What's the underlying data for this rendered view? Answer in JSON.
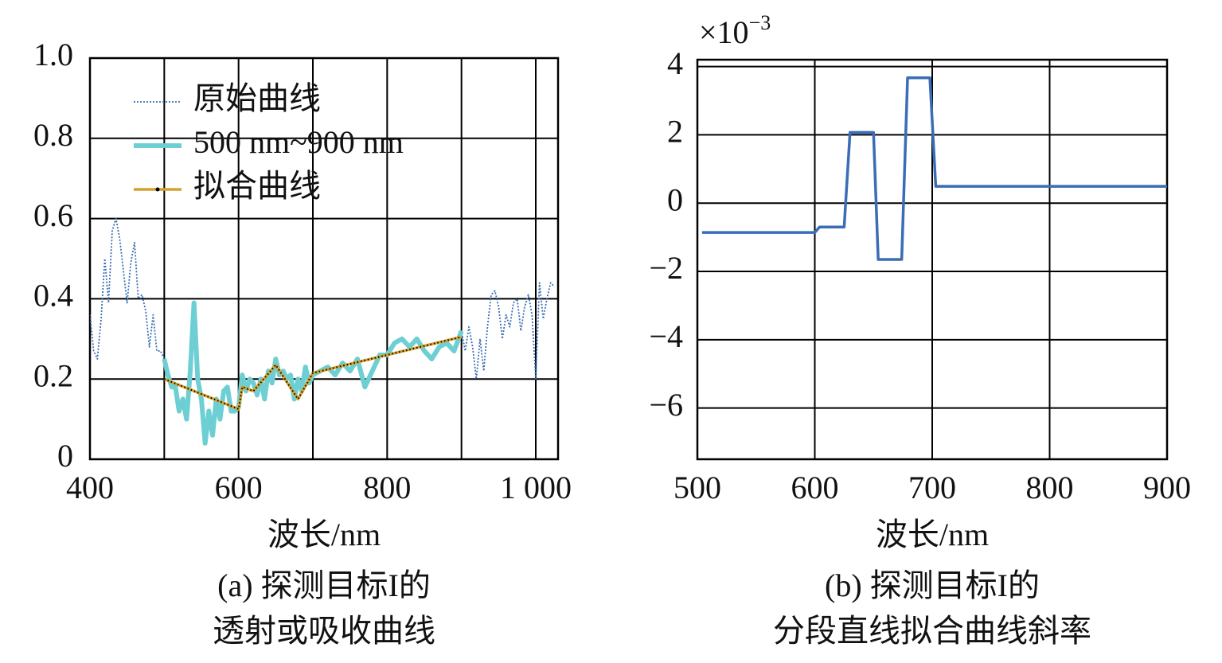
{
  "chart_data": [
    {
      "type": "line",
      "xlabel": "波长/nm",
      "caption": [
        "(a) 探测目标I的",
        "透射或吸收曲线"
      ],
      "xlim": [
        400,
        1030
      ],
      "ylim": [
        0,
        1
      ],
      "xticks": [
        400,
        600,
        800,
        {
          "value": 1000,
          "label": "1 000"
        }
      ],
      "xminorticks": [
        500,
        700,
        900
      ],
      "yticks": [
        0,
        0.2,
        0.4,
        0.6,
        0.8,
        {
          "value": 1,
          "label": "1.0"
        }
      ],
      "grid": true,
      "legend": "upper left",
      "series": [
        {
          "name": "原始曲线",
          "color": "#3b6fb6",
          "linestyle": "dotted",
          "x": [
            400,
            405,
            410,
            415,
            420,
            425,
            430,
            435,
            440,
            445,
            450,
            455,
            460,
            465,
            470,
            475,
            480,
            485,
            490,
            495,
            500,
            505,
            510,
            515,
            520,
            525,
            530,
            535,
            540,
            545,
            550,
            555,
            560,
            565,
            570,
            575,
            580,
            585,
            590,
            595,
            600,
            605,
            610,
            615,
            620,
            625,
            630,
            635,
            640,
            645,
            650,
            655,
            660,
            665,
            670,
            675,
            680,
            685,
            690,
            695,
            700,
            710,
            720,
            730,
            740,
            750,
            760,
            770,
            780,
            790,
            800,
            810,
            820,
            830,
            840,
            850,
            860,
            870,
            880,
            890,
            900,
            905,
            910,
            915,
            920,
            925,
            930,
            935,
            940,
            945,
            950,
            955,
            960,
            965,
            970,
            975,
            980,
            985,
            990,
            995,
            1000,
            1005,
            1010,
            1015,
            1020,
            1025
          ],
          "values": [
            0.36,
            0.27,
            0.25,
            0.35,
            0.5,
            0.39,
            0.57,
            0.6,
            0.55,
            0.47,
            0.39,
            0.49,
            0.54,
            0.4,
            0.41,
            0.37,
            0.28,
            0.36,
            0.27,
            0.27,
            0.25,
            0.21,
            0.18,
            0.18,
            0.12,
            0.15,
            0.1,
            0.22,
            0.39,
            0.2,
            0.15,
            0.04,
            0.12,
            0.06,
            0.15,
            0.1,
            0.17,
            0.18,
            0.12,
            0.12,
            0.13,
            0.21,
            0.17,
            0.2,
            0.19,
            0.16,
            0.2,
            0.15,
            0.22,
            0.19,
            0.25,
            0.21,
            0.22,
            0.2,
            0.21,
            0.15,
            0.2,
            0.17,
            0.23,
            0.19,
            0.21,
            0.22,
            0.23,
            0.21,
            0.24,
            0.22,
            0.25,
            0.18,
            0.22,
            0.26,
            0.26,
            0.29,
            0.3,
            0.28,
            0.3,
            0.27,
            0.25,
            0.28,
            0.29,
            0.27,
            0.32,
            0.27,
            0.33,
            0.28,
            0.2,
            0.3,
            0.22,
            0.33,
            0.41,
            0.42,
            0.38,
            0.3,
            0.36,
            0.33,
            0.39,
            0.4,
            0.32,
            0.38,
            0.41,
            0.36,
            0.2,
            0.44,
            0.35,
            0.4,
            0.44,
            0.43
          ]
        },
        {
          "name": "500 nm~900 nm",
          "color": "#6dcfd3",
          "linestyle": "thick",
          "x": [
            500,
            505,
            510,
            515,
            520,
            525,
            530,
            535,
            540,
            545,
            550,
            555,
            560,
            565,
            570,
            575,
            580,
            585,
            590,
            595,
            600,
            605,
            610,
            615,
            620,
            625,
            630,
            635,
            640,
            645,
            650,
            655,
            660,
            665,
            670,
            675,
            680,
            685,
            690,
            695,
            700,
            710,
            720,
            730,
            740,
            750,
            760,
            770,
            780,
            790,
            800,
            810,
            820,
            830,
            840,
            850,
            860,
            870,
            880,
            890,
            900
          ],
          "values": [
            0.25,
            0.21,
            0.18,
            0.18,
            0.12,
            0.15,
            0.1,
            0.22,
            0.39,
            0.2,
            0.15,
            0.04,
            0.12,
            0.06,
            0.15,
            0.1,
            0.17,
            0.18,
            0.12,
            0.12,
            0.13,
            0.21,
            0.17,
            0.2,
            0.19,
            0.16,
            0.2,
            0.15,
            0.22,
            0.19,
            0.25,
            0.21,
            0.22,
            0.2,
            0.21,
            0.15,
            0.2,
            0.17,
            0.23,
            0.19,
            0.21,
            0.22,
            0.23,
            0.21,
            0.24,
            0.22,
            0.25,
            0.18,
            0.22,
            0.26,
            0.26,
            0.29,
            0.3,
            0.28,
            0.3,
            0.27,
            0.25,
            0.28,
            0.29,
            0.27,
            0.32
          ]
        },
        {
          "name": "拟合曲线",
          "color": "#d4a22f",
          "linestyle": "dotted-overlay",
          "x": [
            500,
            600,
            605,
            620,
            650,
            680,
            700,
            900
          ],
          "values": [
            0.2,
            0.125,
            0.18,
            0.17,
            0.235,
            0.15,
            0.215,
            0.305
          ]
        }
      ]
    },
    {
      "type": "line",
      "xlabel": "波长/nm",
      "caption": [
        "(b) 探测目标I的",
        "分段直线拟合曲线斜率"
      ],
      "multiplier": {
        "base": "×10",
        "exponent": "−3"
      },
      "xlim": [
        500,
        900
      ],
      "ylim": [
        -7.5,
        4.2
      ],
      "xticks": [
        500,
        600,
        700,
        800,
        900
      ],
      "yticks": [
        {
          "value": -6,
          "label": "−6"
        },
        {
          "value": -4,
          "label": "−4"
        },
        {
          "value": -2,
          "label": "−2"
        },
        0,
        2,
        4
      ],
      "grid": true,
      "series": [
        {
          "color": "#3a6db5",
          "linestyle": "solid",
          "x": [
            504,
            600,
            604,
            625,
            630,
            650,
            654,
            674,
            679,
            698,
            703,
            900
          ],
          "values": [
            -0.86,
            -0.86,
            -0.7,
            -0.7,
            2.07,
            2.07,
            -1.65,
            -1.65,
            3.67,
            3.67,
            0.49,
            0.49
          ]
        }
      ]
    }
  ]
}
